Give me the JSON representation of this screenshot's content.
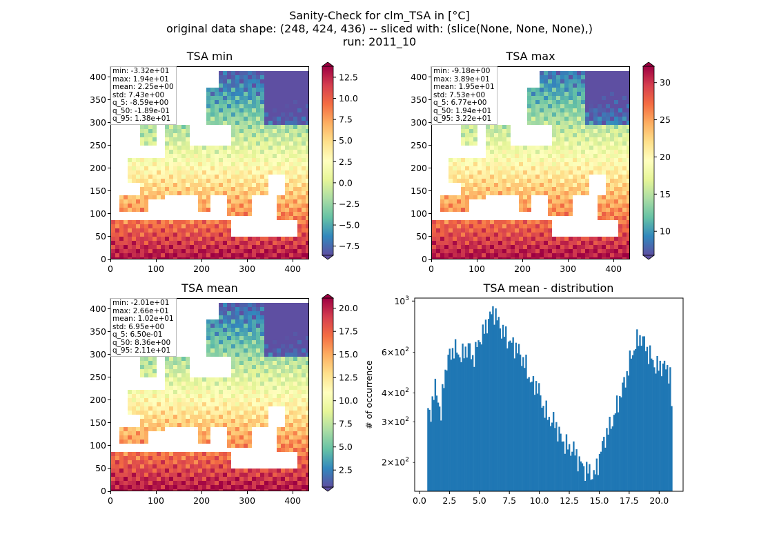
{
  "figure": {
    "title_lines": [
      "Sanity-Check for clm_TSA in [°C]",
      "original data shape: (248, 424, 436) -- sliced with: (slice(None, None, None),)",
      "run: 2011_10"
    ]
  },
  "colormap": "Spectral_r",
  "chart_data": [
    {
      "type": "heatmap",
      "title": "TSA min",
      "xlim": [
        0,
        436
      ],
      "ylim": [
        0,
        424
      ],
      "xticks": [
        0,
        100,
        200,
        300,
        400
      ],
      "yticks": [
        0,
        50,
        100,
        150,
        200,
        250,
        300,
        350,
        400
      ],
      "stats": [
        "min: -3.32e+01",
        "max: 1.94e+01",
        "mean: 2.25e+00",
        "std: 7.43e+00",
        "q_5: -8.59e+00",
        "q_50: -1.89e-01",
        "q_95: 1.38e+01"
      ],
      "colorbar": {
        "range": [
          -8.59,
          13.8
        ],
        "ticks": [
          -7.5,
          -5.0,
          -2.5,
          0.0,
          2.5,
          5.0,
          7.5,
          10.0,
          12.5
        ],
        "tick_labels": [
          "−7.5",
          "−5.0",
          "−2.5",
          "0.0",
          "2.5",
          "5.0",
          "7.5",
          "10.0",
          "12.5"
        ]
      }
    },
    {
      "type": "heatmap",
      "title": "TSA max",
      "xlim": [
        0,
        436
      ],
      "ylim": [
        0,
        424
      ],
      "xticks": [
        0,
        100,
        200,
        300,
        400
      ],
      "yticks": [
        0,
        50,
        100,
        150,
        200,
        250,
        300,
        350,
        400
      ],
      "stats": [
        "min: -9.18e+00",
        "max: 3.89e+01",
        "mean: 1.95e+01",
        "std: 7.53e+00",
        "q_5: 6.77e+00",
        "q_50: 1.94e+01",
        "q_95: 3.22e+01"
      ],
      "colorbar": {
        "range": [
          6.77,
          32.2
        ],
        "ticks": [
          10,
          15,
          20,
          25,
          30
        ],
        "tick_labels": [
          "10",
          "15",
          "20",
          "25",
          "30"
        ]
      }
    },
    {
      "type": "heatmap",
      "title": "TSA mean",
      "xlim": [
        0,
        436
      ],
      "ylim": [
        0,
        424
      ],
      "xticks": [
        0,
        100,
        200,
        300,
        400
      ],
      "yticks": [
        0,
        50,
        100,
        150,
        200,
        250,
        300,
        350,
        400
      ],
      "stats": [
        "min: -2.01e+01",
        "max: 2.66e+01",
        "mean: 1.02e+01",
        "std: 6.95e+00",
        "q_5: 6.50e-01",
        "q_50: 8.36e+00",
        "q_95: 2.11e+01"
      ],
      "colorbar": {
        "range": [
          0.65,
          21.1
        ],
        "ticks": [
          2.5,
          5.0,
          7.5,
          10.0,
          12.5,
          15.0,
          17.5,
          20.0
        ],
        "tick_labels": [
          "2.5",
          "5.0",
          "7.5",
          "10.0",
          "12.5",
          "15.0",
          "17.5",
          "20.0"
        ]
      }
    },
    {
      "type": "bar",
      "title": "TSA mean - distribution",
      "ylabel": "# of occurrence",
      "yscale": "log",
      "color": "#1f77b4",
      "xlim": [
        -0.4,
        22.0
      ],
      "ylim": [
        150,
        1030
      ],
      "xticks": [
        0.0,
        2.5,
        5.0,
        7.5,
        10.0,
        12.5,
        15.0,
        17.5,
        20.0
      ],
      "xtick_labels": [
        "0.0",
        "2.5",
        "5.0",
        "7.5",
        "10.0",
        "12.5",
        "15.0",
        "17.5",
        "20.0"
      ],
      "yticks_major": [
        1000
      ],
      "yticks_major_labels": [
        "10^3"
      ],
      "yticks_minor": [
        200,
        300,
        400,
        600
      ],
      "yticks_minor_labels": [
        "2×10^2",
        "3×10^2",
        "4×10^2",
        "6×10^2"
      ],
      "hist_range": [
        0.65,
        21.1
      ],
      "anchors": [
        [
          0.65,
          330
        ],
        [
          0.9,
          320
        ],
        [
          1.1,
          380
        ],
        [
          1.35,
          420
        ],
        [
          1.6,
          370
        ],
        [
          1.8,
          310
        ],
        [
          2.0,
          450
        ],
        [
          2.3,
          540
        ],
        [
          2.6,
          600
        ],
        [
          2.9,
          620
        ],
        [
          3.2,
          600
        ],
        [
          3.5,
          570
        ],
        [
          3.8,
          610
        ],
        [
          4.1,
          640
        ],
        [
          4.4,
          560
        ],
        [
          4.7,
          610
        ],
        [
          5.0,
          680
        ],
        [
          5.3,
          720
        ],
        [
          5.6,
          800
        ],
        [
          5.9,
          860
        ],
        [
          6.2,
          920
        ],
        [
          6.5,
          830
        ],
        [
          6.8,
          760
        ],
        [
          7.1,
          720
        ],
        [
          7.4,
          680
        ],
        [
          7.7,
          650
        ],
        [
          8.0,
          640
        ],
        [
          8.3,
          600
        ],
        [
          8.6,
          560
        ],
        [
          8.9,
          520
        ],
        [
          9.2,
          460
        ],
        [
          9.5,
          430
        ],
        [
          9.8,
          440
        ],
        [
          10.1,
          380
        ],
        [
          10.4,
          340
        ],
        [
          10.7,
          320
        ],
        [
          11.0,
          300
        ],
        [
          11.3,
          300
        ],
        [
          11.6,
          270
        ],
        [
          11.9,
          250
        ],
        [
          12.2,
          240
        ],
        [
          12.5,
          230
        ],
        [
          12.8,
          230
        ],
        [
          13.1,
          215
        ],
        [
          13.4,
          200
        ],
        [
          13.7,
          190
        ],
        [
          14.0,
          185
        ],
        [
          14.3,
          180
        ],
        [
          14.6,
          175
        ],
        [
          14.9,
          200
        ],
        [
          15.2,
          230
        ],
        [
          15.5,
          260
        ],
        [
          15.8,
          280
        ],
        [
          16.1,
          300
        ],
        [
          16.4,
          340
        ],
        [
          16.7,
          380
        ],
        [
          17.0,
          430
        ],
        [
          17.3,
          480
        ],
        [
          17.6,
          560
        ],
        [
          17.9,
          620
        ],
        [
          18.2,
          680
        ],
        [
          18.5,
          700
        ],
        [
          18.8,
          650
        ],
        [
          19.1,
          600
        ],
        [
          19.4,
          560
        ],
        [
          19.7,
          520
        ],
        [
          20.0,
          520
        ],
        [
          20.3,
          530
        ],
        [
          20.6,
          510
        ],
        [
          20.9,
          500
        ],
        [
          21.1,
          290
        ]
      ]
    }
  ]
}
